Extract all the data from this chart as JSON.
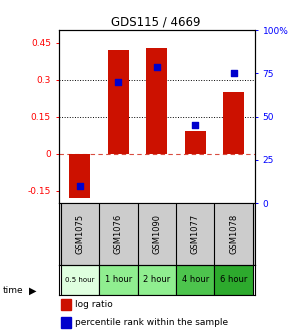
{
  "title": "GDS115 / 4669",
  "samples": [
    "GSM1075",
    "GSM1076",
    "GSM1090",
    "GSM1077",
    "GSM1078"
  ],
  "time_labels": [
    "0.5 hour",
    "1 hour",
    "2 hour",
    "4 hour",
    "6 hour"
  ],
  "time_colors": [
    "#dfffdf",
    "#90ee90",
    "#90ee90",
    "#4dc44d",
    "#2daa2d"
  ],
  "log_ratios": [
    -0.18,
    0.42,
    0.43,
    0.09,
    0.25
  ],
  "percentile_ranks": [
    10,
    70,
    79,
    45,
    75
  ],
  "bar_color": "#cc1100",
  "dot_color": "#0000cc",
  "ylim_left": [
    -0.2,
    0.5
  ],
  "ylim_right": [
    0,
    100
  ],
  "yticks_left": [
    -0.15,
    0.0,
    0.15,
    0.3,
    0.45
  ],
  "yticks_right": [
    0,
    25,
    50,
    75,
    100
  ],
  "hlines": [
    0.15,
    0.3
  ],
  "zero_line": 0.0,
  "bar_width": 0.55,
  "background_color": "#ffffff",
  "sample_bg": "#cccccc",
  "legend_ratio_label": "log ratio",
  "legend_pct_label": "percentile rank within the sample"
}
